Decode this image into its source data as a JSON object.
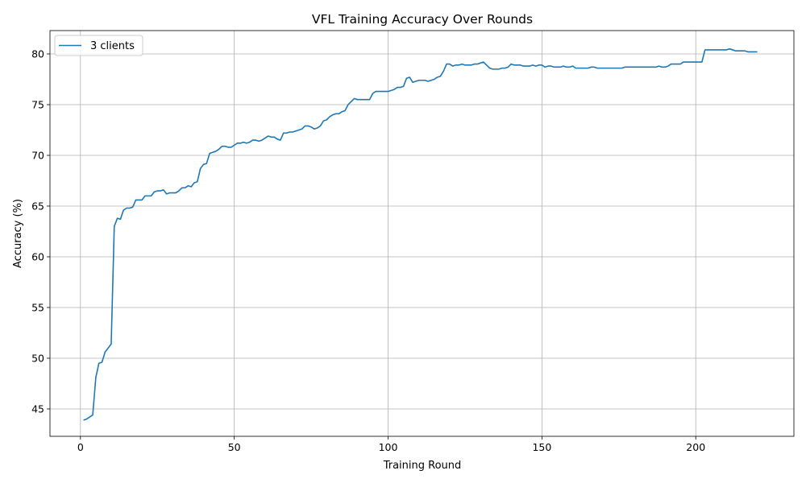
{
  "chart_data": {
    "type": "line",
    "title": "VFL Training Accuracy Over Rounds",
    "xlabel": "Training Round",
    "ylabel": "Accuracy (%)",
    "xlim": [
      -9.9,
      231.9
    ],
    "ylim": [
      42.3,
      82.3
    ],
    "xticks": [
      0,
      50,
      100,
      150,
      200
    ],
    "yticks": [
      45,
      50,
      55,
      60,
      65,
      70,
      75,
      80
    ],
    "grid": true,
    "legend_position": "top-left",
    "series": [
      {
        "name": "3 clients",
        "color": "#1f77b4",
        "x": [
          1,
          2,
          3,
          4,
          5,
          6,
          7,
          8,
          9,
          10,
          11,
          12,
          13,
          14,
          15,
          16,
          17,
          18,
          19,
          20,
          21,
          22,
          23,
          24,
          25,
          26,
          27,
          28,
          29,
          30,
          31,
          32,
          33,
          34,
          35,
          36,
          37,
          38,
          39,
          40,
          41,
          42,
          43,
          44,
          45,
          46,
          47,
          48,
          49,
          50,
          51,
          52,
          53,
          54,
          55,
          56,
          57,
          58,
          59,
          60,
          61,
          62,
          63,
          64,
          65,
          66,
          67,
          68,
          69,
          70,
          71,
          72,
          73,
          74,
          75,
          76,
          77,
          78,
          79,
          80,
          81,
          82,
          83,
          84,
          85,
          86,
          87,
          88,
          89,
          90,
          91,
          92,
          93,
          94,
          95,
          96,
          97,
          98,
          99,
          100,
          101,
          102,
          103,
          104,
          105,
          106,
          107,
          108,
          109,
          110,
          111,
          112,
          113,
          114,
          115,
          116,
          117,
          118,
          119,
          120,
          121,
          122,
          123,
          124,
          125,
          126,
          127,
          128,
          129,
          130,
          131,
          132,
          133,
          134,
          135,
          136,
          137,
          138,
          139,
          140,
          141,
          142,
          143,
          144,
          145,
          146,
          147,
          148,
          149,
          150,
          151,
          152,
          153,
          154,
          155,
          156,
          157,
          158,
          159,
          160,
          161,
          162,
          163,
          164,
          165,
          166,
          167,
          168,
          169,
          170,
          171,
          172,
          173,
          174,
          175,
          176,
          177,
          178,
          179,
          180,
          181,
          182,
          183,
          184,
          185,
          186,
          187,
          188,
          189,
          190,
          191,
          192,
          193,
          194,
          195,
          196,
          197,
          198,
          199,
          200,
          201,
          202,
          203,
          204,
          205,
          206,
          207,
          208,
          209,
          210,
          211,
          212,
          213,
          214,
          215,
          216,
          217,
          218,
          219,
          220
        ],
        "y": [
          43.9,
          44.0,
          44.2,
          44.4,
          48.1,
          49.5,
          49.6,
          50.6,
          51.0,
          51.4,
          63.0,
          63.8,
          63.7,
          64.6,
          64.8,
          64.8,
          64.9,
          65.6,
          65.6,
          65.6,
          66.0,
          66.0,
          66.0,
          66.4,
          66.5,
          66.5,
          66.6,
          66.2,
          66.3,
          66.3,
          66.3,
          66.5,
          66.8,
          66.8,
          67.0,
          66.9,
          67.3,
          67.4,
          68.7,
          69.1,
          69.2,
          70.2,
          70.3,
          70.4,
          70.6,
          70.9,
          70.9,
          70.8,
          70.8,
          71.0,
          71.2,
          71.2,
          71.3,
          71.2,
          71.3,
          71.5,
          71.5,
          71.4,
          71.5,
          71.7,
          71.9,
          71.8,
          71.8,
          71.6,
          71.5,
          72.2,
          72.2,
          72.3,
          72.3,
          72.4,
          72.5,
          72.6,
          72.9,
          72.9,
          72.8,
          72.6,
          72.7,
          72.9,
          73.4,
          73.5,
          73.8,
          74.0,
          74.1,
          74.1,
          74.3,
          74.4,
          75.0,
          75.3,
          75.6,
          75.5,
          75.5,
          75.5,
          75.5,
          75.5,
          76.1,
          76.3,
          76.3,
          76.3,
          76.3,
          76.3,
          76.4,
          76.5,
          76.7,
          76.7,
          76.8,
          77.6,
          77.7,
          77.2,
          77.3,
          77.4,
          77.4,
          77.4,
          77.3,
          77.4,
          77.5,
          77.7,
          77.8,
          78.3,
          79.0,
          79.0,
          78.8,
          78.9,
          78.9,
          79.0,
          78.9,
          78.9,
          78.9,
          79.0,
          79.0,
          79.1,
          79.2,
          78.9,
          78.6,
          78.5,
          78.5,
          78.5,
          78.6,
          78.6,
          78.7,
          79.0,
          78.9,
          78.9,
          78.9,
          78.8,
          78.8,
          78.8,
          78.9,
          78.8,
          78.9,
          78.9,
          78.7,
          78.8,
          78.8,
          78.7,
          78.7,
          78.7,
          78.8,
          78.7,
          78.7,
          78.8,
          78.6,
          78.6,
          78.6,
          78.6,
          78.6,
          78.7,
          78.7,
          78.6,
          78.6,
          78.6,
          78.6,
          78.6,
          78.6,
          78.6,
          78.6,
          78.6,
          78.7,
          78.7,
          78.7,
          78.7,
          78.7,
          78.7,
          78.7,
          78.7,
          78.7,
          78.7,
          78.7,
          78.8,
          78.7,
          78.7,
          78.8,
          79.0,
          79.0,
          79.0,
          79.0,
          79.2,
          79.2,
          79.2,
          79.2,
          79.2,
          79.2,
          79.2,
          80.4,
          80.4,
          80.4,
          80.4,
          80.4,
          80.4,
          80.4,
          80.4,
          80.5,
          80.4,
          80.3,
          80.3,
          80.3,
          80.3,
          80.2,
          80.2,
          80.2,
          80.2
        ]
      }
    ]
  }
}
